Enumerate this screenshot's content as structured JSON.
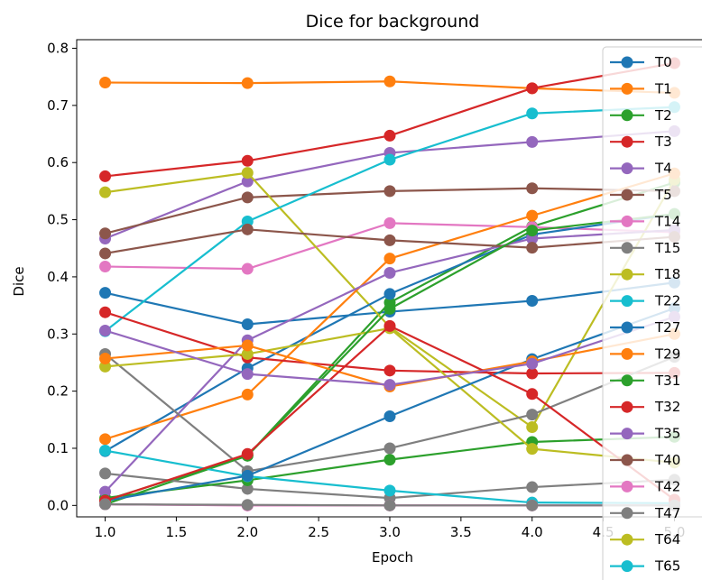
{
  "chart_data": {
    "type": "line",
    "title": "Dice for background",
    "xlabel": "Epoch",
    "ylabel": "Dice",
    "x": [
      1,
      2,
      3,
      4,
      5
    ],
    "xlim": [
      0.8,
      5.2
    ],
    "ylim": [
      -0.02,
      0.815
    ],
    "xticks": [
      "1.0",
      "1.5",
      "2.0",
      "2.5",
      "3.0",
      "3.5",
      "4.0",
      "4.5",
      "5.0"
    ],
    "yticks": [
      "0.0",
      "0.1",
      "0.2",
      "0.3",
      "0.4",
      "0.5",
      "0.6",
      "0.7",
      "0.8"
    ],
    "legend_position": "right, overlapping plot",
    "grid": false,
    "series": [
      {
        "name": "T0",
        "color": "#1f77b4",
        "values": [
          0.372,
          0.317,
          0.339,
          0.358,
          0.39
        ]
      },
      {
        "name": "T1",
        "color": "#ff7f0e",
        "values": [
          0.74,
          0.739,
          0.742,
          0.73,
          0.722
        ]
      },
      {
        "name": "T2",
        "color": "#2ca02c",
        "values": [
          0.002,
          0.087,
          0.355,
          0.488,
          0.565
        ]
      },
      {
        "name": "T3",
        "color": "#d62728",
        "values": [
          0.576,
          0.603,
          0.647,
          0.73,
          0.774
        ]
      },
      {
        "name": "T4",
        "color": "#9467bd",
        "values": [
          0.467,
          0.567,
          0.617,
          0.636,
          0.655
        ]
      },
      {
        "name": "T5",
        "color": "#8c564b",
        "values": [
          0.476,
          0.539,
          0.55,
          0.555,
          0.55
        ]
      },
      {
        "name": "T14",
        "color": "#e377c2",
        "values": [
          0.418,
          0.414,
          0.494,
          0.487,
          0.478
        ]
      },
      {
        "name": "T15",
        "color": "#7f7f7f",
        "values": [
          0.056,
          0.029,
          0.013,
          0.032,
          0.045
        ]
      },
      {
        "name": "T18",
        "color": "#bcbd22",
        "values": [
          0.548,
          0.582,
          0.312,
          0.137,
          0.57
        ]
      },
      {
        "name": "T22",
        "color": "#17becf",
        "values": [
          0.305,
          0.497,
          0.605,
          0.686,
          0.697
        ]
      },
      {
        "name": "T27",
        "color": "#1f77b4",
        "values": [
          0.095,
          0.24,
          0.37,
          0.474,
          0.51
        ]
      },
      {
        "name": "T29",
        "color": "#ff7f0e",
        "values": [
          0.116,
          0.194,
          0.432,
          0.507,
          0.581
        ]
      },
      {
        "name": "T31",
        "color": "#2ca02c",
        "values": [
          0.013,
          0.044,
          0.08,
          0.111,
          0.12
        ]
      },
      {
        "name": "T32",
        "color": "#d62728",
        "values": [
          0.338,
          0.259,
          0.236,
          0.231,
          0.232
        ]
      },
      {
        "name": "T35",
        "color": "#9467bd",
        "values": [
          0.024,
          0.289,
          0.407,
          0.467,
          0.482
        ]
      },
      {
        "name": "T40",
        "color": "#8c564b",
        "values": [
          0.441,
          0.483,
          0.464,
          0.451,
          0.47
        ]
      },
      {
        "name": "T42",
        "color": "#e377c2",
        "values": [
          0.002,
          0.0,
          0.0,
          0.0,
          0.0
        ]
      },
      {
        "name": "T47",
        "color": "#7f7f7f",
        "values": [
          0.265,
          0.06,
          0.1,
          0.159,
          0.26
        ]
      },
      {
        "name": "T64",
        "color": "#bcbd22",
        "values": [
          0.243,
          0.265,
          0.31,
          0.099,
          0.075
        ]
      },
      {
        "name": "T65",
        "color": "#17becf",
        "values": [
          0.096,
          0.051,
          0.026,
          0.005,
          0.004
        ]
      },
      {
        "name": "",
        "color": "#1f77b4",
        "values": [
          0.008,
          0.052,
          0.156,
          0.256,
          0.345
        ]
      },
      {
        "name": "",
        "color": "#ff7f0e",
        "values": [
          0.257,
          0.28,
          0.208,
          0.252,
          0.3
        ]
      },
      {
        "name": "",
        "color": "#2ca02c",
        "values": [
          0.009,
          0.087,
          0.344,
          0.481,
          0.51
        ]
      },
      {
        "name": "",
        "color": "#d62728",
        "values": [
          0.008,
          0.09,
          0.314,
          0.195,
          0.01
        ]
      },
      {
        "name": "",
        "color": "#9467bd",
        "values": [
          0.306,
          0.23,
          0.211,
          0.248,
          0.33
        ]
      },
      {
        "name": "",
        "color": "#e377c2",
        "values": [
          0.002,
          0.0,
          0.0,
          0.0,
          0.0
        ]
      },
      {
        "name": "",
        "color": "#7f7f7f",
        "values": [
          0.002,
          0.001,
          0.0,
          0.0,
          0.0
        ]
      }
    ]
  }
}
